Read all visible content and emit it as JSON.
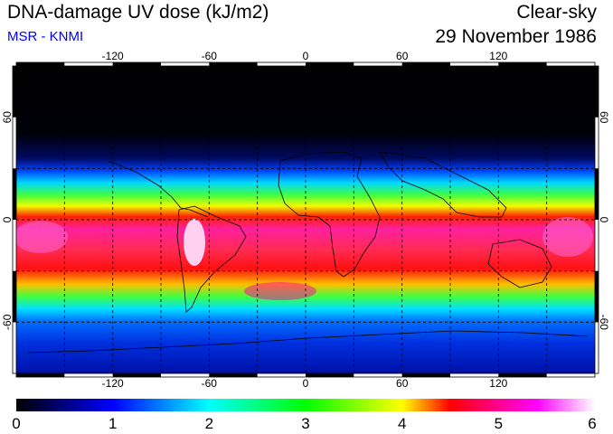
{
  "header": {
    "title": "DNA-damage UV dose (kJ/m2)",
    "source": "MSR - KNMI",
    "condition": "Clear-sky",
    "date": "29 November 1986"
  },
  "map": {
    "longitude_labels": [
      "-120",
      "-60",
      "0",
      "60",
      "120"
    ],
    "latitude_labels": [
      "60",
      "0",
      "-60"
    ],
    "lon_range": [
      -180,
      180
    ],
    "lat_range": [
      -90,
      90
    ]
  },
  "colorbar": {
    "range": [
      0,
      6
    ],
    "labels": [
      "0",
      "1",
      "2",
      "3",
      "4",
      "5",
      "6"
    ],
    "colors": [
      "#000000",
      "#0000ff",
      "#00ffff",
      "#00ff00",
      "#ffff00",
      "#ff0000",
      "#ff00ff",
      "#ffffff"
    ]
  }
}
